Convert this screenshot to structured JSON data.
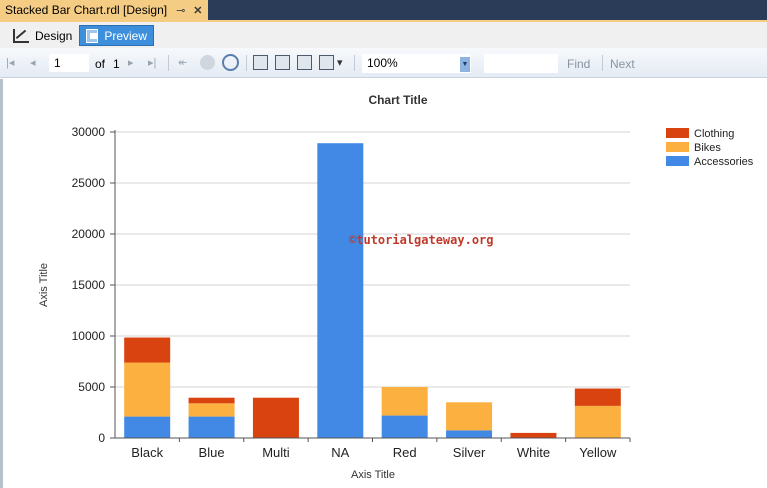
{
  "document_tab": {
    "title": "Stacked Bar Chart.rdl [Design]",
    "pin_icon": "pin-icon",
    "close_icon": "close-icon"
  },
  "mode_bar": {
    "design_label": "Design",
    "preview_label": "Preview",
    "active": "Preview"
  },
  "toolbar": {
    "page_value": "1",
    "of_label": "of",
    "total_pages": "1",
    "zoom_value": "100%",
    "find_label": "Find",
    "next_label": "Next",
    "find_value": ""
  },
  "watermark": "©tutorialgateway.org",
  "chart_data": {
    "type": "bar",
    "stacked": true,
    "title": "Chart Title",
    "xlabel": "Axis Title",
    "ylabel": "Axis Title",
    "ylim": [
      0,
      30000
    ],
    "yticks": [
      0,
      5000,
      10000,
      15000,
      20000,
      25000,
      30000
    ],
    "grid": true,
    "legend": "top-right",
    "categories": [
      "Black",
      "Blue",
      "Multi",
      "NA",
      "Red",
      "Silver",
      "White",
      "Yellow"
    ],
    "series": [
      {
        "name": "Accessories",
        "color": "#4189e4",
        "values": [
          2100,
          2100,
          0,
          28900,
          2200,
          750,
          0,
          0
        ]
      },
      {
        "name": "Bikes",
        "color": "#fbb040",
        "values": [
          5300,
          1300,
          0,
          0,
          2800,
          2750,
          0,
          3150
        ]
      },
      {
        "name": "Clothing",
        "color": "#d9430f",
        "values": [
          2450,
          550,
          3950,
          0,
          0,
          0,
          500,
          1700
        ]
      }
    ]
  }
}
